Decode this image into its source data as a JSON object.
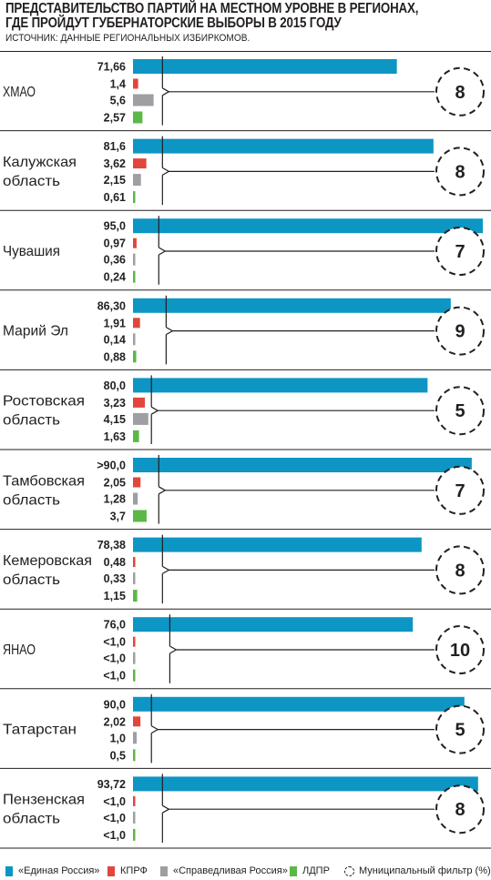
{
  "title_lines": [
    "ПРЕДСТАВИТЕЛЬСТВО ПАРТИЙ НА МЕСТНОМ УРОВНЕ В РЕГИОНАХ,",
    "ГДЕ ПРОЙДУТ ГУБЕРНАТОРСКИЕ ВЫБОРЫ В 2015 ГОДУ"
  ],
  "source": "ИСТОЧНИК: ДАННЫЕ РЕГИОНАЛЬНЫХ ИЗБИРКОМОВ.",
  "colors": {
    "united_russia": "#0d95c4",
    "kprf": "#e1463c",
    "just_russia": "#9d9fa2",
    "ldpr": "#5cb846",
    "text": "#231f20"
  },
  "chart_data": {
    "type": "bar",
    "unit": "%",
    "xlim": [
      0,
      95
    ],
    "parties": [
      "«Единая Россия»",
      "КПРФ",
      "«Справедливая Россия»",
      "ЛДПР"
    ],
    "filter_label": "Муниципальный фильтр (%)",
    "regions": [
      {
        "name_lines": [
          "ХМАО"
        ],
        "values": [
          71.66,
          1.4,
          5.6,
          2.57
        ],
        "labels": [
          "71,66",
          "1,4",
          "5,6",
          "2,57"
        ],
        "filter": 8
      },
      {
        "name_lines": [
          "Калужская",
          "область"
        ],
        "values": [
          81.6,
          3.62,
          2.15,
          0.61
        ],
        "labels": [
          "81,6",
          "3,62",
          "2,15",
          "0,61"
        ],
        "filter": 8
      },
      {
        "name_lines": [
          "Чувашия"
        ],
        "values": [
          95.0,
          0.97,
          0.36,
          0.24
        ],
        "labels": [
          "95,0",
          "0,97",
          "0,36",
          "0,24"
        ],
        "filter": 7
      },
      {
        "name_lines": [
          "Марий Эл"
        ],
        "values": [
          86.3,
          1.91,
          0.14,
          0.88
        ],
        "labels": [
          "86,30",
          "1,91",
          "0,14",
          "0,88"
        ],
        "filter": 9
      },
      {
        "name_lines": [
          "Ростовская",
          "область"
        ],
        "values": [
          80.0,
          3.23,
          4.15,
          1.63
        ],
        "labels": [
          "80,0",
          "3,23",
          "4,15",
          "1,63"
        ],
        "filter": 5
      },
      {
        "name_lines": [
          "Тамбовская",
          "область"
        ],
        "values": [
          92.0,
          2.05,
          1.28,
          3.7
        ],
        "labels": [
          ">90,0",
          "2,05",
          "1,28",
          "3,7"
        ],
        "filter": 7
      },
      {
        "name_lines": [
          "Кемеровская",
          "область"
        ],
        "values": [
          78.38,
          0.48,
          0.33,
          1.15
        ],
        "labels": [
          "78,38",
          "0,48",
          "0,33",
          "1,15"
        ],
        "filter": 8
      },
      {
        "name_lines": [
          "ЯНАО"
        ],
        "values": [
          76.0,
          0.5,
          0.5,
          0.5
        ],
        "labels": [
          "76,0",
          "<1,0",
          "<1,0",
          "<1,0"
        ],
        "filter": 10
      },
      {
        "name_lines": [
          "Татарстан"
        ],
        "values": [
          90.0,
          2.02,
          1.0,
          0.5
        ],
        "labels": [
          "90,0",
          "2,02",
          "1,0",
          "0,5"
        ],
        "filter": 5
      },
      {
        "name_lines": [
          "Пензенская",
          "область"
        ],
        "values": [
          93.72,
          0.5,
          0.5,
          0.5
        ],
        "labels": [
          "93,72",
          "<1,0",
          "<1,0",
          "<1,0"
        ],
        "filter": 8
      }
    ]
  }
}
